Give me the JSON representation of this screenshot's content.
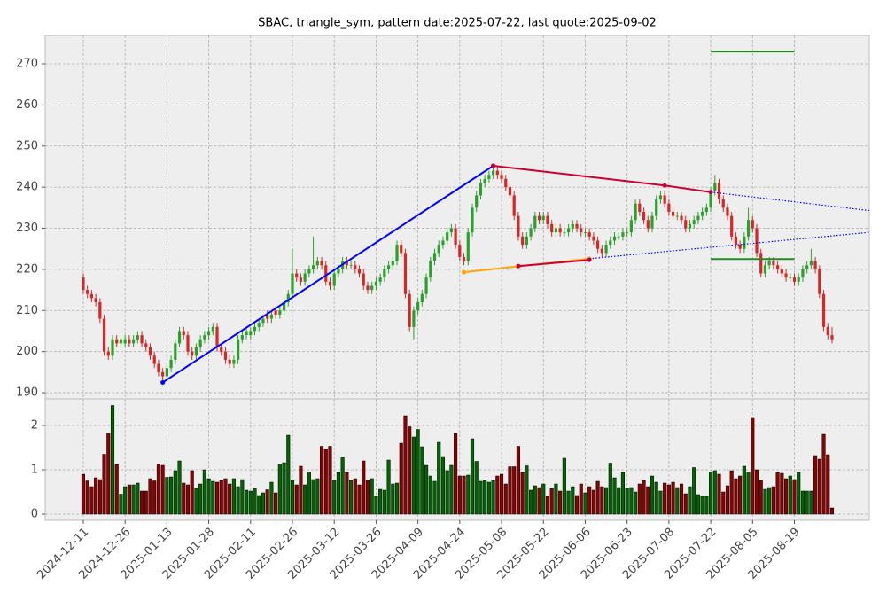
{
  "chart_data": [
    {
      "type": "candlestick",
      "title": "SBAC, triangle_sym, pattern date:2025-07-22, last quote:2025-09-02",
      "categories": [
        "2024-12-11",
        null,
        null,
        null,
        null,
        null,
        null,
        null,
        null,
        null,
        "2024-12-26",
        null,
        null,
        null,
        null,
        null,
        null,
        null,
        null,
        null,
        "2025-01-13",
        null,
        null,
        null,
        null,
        null,
        null,
        null,
        null,
        null,
        "2025-01-28",
        null,
        null,
        null,
        null,
        null,
        null,
        null,
        null,
        null,
        "2025-02-11",
        null,
        null,
        null,
        null,
        null,
        null,
        null,
        null,
        null,
        "2025-02-26",
        null,
        null,
        null,
        null,
        null,
        null,
        null,
        null,
        null,
        "2025-03-12",
        null,
        null,
        null,
        null,
        null,
        null,
        null,
        null,
        null,
        "2025-03-26",
        null,
        null,
        null,
        null,
        null,
        null,
        null,
        null,
        null,
        "2025-04-09",
        null,
        null,
        null,
        null,
        null,
        null,
        null,
        null,
        null,
        "2025-04-24",
        null,
        null,
        null,
        null,
        null,
        null,
        null,
        null,
        null,
        "2025-05-08",
        null,
        null,
        null,
        null,
        null,
        null,
        null,
        null,
        null,
        "2025-05-22",
        null,
        null,
        null,
        null,
        null,
        null,
        null,
        null,
        null,
        "2025-06-06",
        null,
        null,
        null,
        null,
        null,
        null,
        null,
        null,
        null,
        "2025-06-23",
        null,
        null,
        null,
        null,
        null,
        null,
        null,
        null,
        null,
        "2025-07-08",
        null,
        null,
        null,
        null,
        null,
        null,
        null,
        null,
        null,
        "2025-07-22",
        null,
        null,
        null,
        null,
        null,
        null,
        null,
        null,
        null,
        "2025-08-05",
        null,
        null,
        null,
        null,
        null,
        null,
        null,
        null,
        null,
        "2025-08-19",
        null,
        null,
        null,
        null,
        null,
        null,
        null,
        null,
        null
      ],
      "open": [
        218,
        215,
        214,
        213,
        212,
        208,
        200,
        199,
        203,
        202,
        202,
        203,
        202,
        203,
        204,
        202,
        201,
        199,
        197,
        195,
        194,
        196,
        198,
        202,
        205,
        204,
        200,
        199,
        201,
        203,
        204,
        205,
        206,
        201,
        200,
        198,
        197,
        198,
        203,
        204,
        204,
        205,
        206,
        207,
        209,
        208,
        210,
        209,
        210,
        212,
        214,
        219,
        218,
        217,
        219,
        220,
        221,
        222,
        221,
        217,
        216,
        219,
        220,
        222,
        221,
        221,
        220,
        219,
        216,
        215,
        216,
        217,
        218,
        220,
        221,
        222,
        226,
        224,
        214,
        206,
        210,
        212,
        214,
        218,
        222,
        224,
        226,
        227,
        229,
        230,
        226,
        223,
        222,
        229,
        235,
        238,
        241,
        242,
        243,
        244,
        243,
        242,
        240,
        238,
        233,
        228,
        226,
        228,
        230,
        233,
        232,
        233,
        231,
        229,
        230,
        229,
        229,
        230,
        231,
        230,
        229,
        229,
        228,
        227,
        225,
        224,
        226,
        227,
        228,
        228,
        229,
        229,
        232,
        236,
        234,
        232,
        230,
        233,
        237,
        238,
        236,
        234,
        233,
        233,
        232,
        230,
        231,
        232,
        233,
        234,
        235,
        239,
        241,
        237,
        235,
        233,
        228,
        226,
        225,
        228,
        232,
        230,
        224,
        219,
        221,
        222,
        221,
        220,
        219,
        218,
        218,
        217,
        218,
        220,
        221,
        222,
        220,
        214,
        206,
        204
      ],
      "high": [
        219,
        216,
        215,
        214,
        213,
        209,
        201,
        204,
        204,
        204,
        204,
        204,
        204,
        205,
        205,
        203,
        202,
        200,
        198,
        196,
        197,
        199,
        203,
        206,
        206,
        205,
        201,
        202,
        204,
        205,
        206,
        207,
        207,
        202,
        201,
        199,
        199,
        204,
        205,
        206,
        206,
        207,
        208,
        209,
        210,
        210,
        211,
        211,
        213,
        215,
        225,
        220,
        219,
        220,
        221,
        228,
        223,
        223,
        222,
        218,
        220,
        221,
        223,
        223,
        222,
        222,
        221,
        220,
        217,
        217,
        218,
        219,
        221,
        222,
        223,
        227,
        227,
        225,
        215,
        211,
        213,
        215,
        219,
        223,
        225,
        227,
        228,
        230,
        231,
        231,
        227,
        224,
        230,
        236,
        239,
        242,
        243,
        244,
        245,
        245,
        244,
        243,
        241,
        239,
        234,
        229,
        229,
        231,
        234,
        234,
        234,
        234,
        232,
        231,
        231,
        230,
        231,
        232,
        232,
        231,
        230,
        230,
        229,
        228,
        226,
        227,
        228,
        229,
        229,
        230,
        230,
        233,
        237,
        237,
        235,
        233,
        234,
        238,
        239,
        239,
        237,
        235,
        234,
        234,
        233,
        232,
        233,
        234,
        235,
        236,
        240,
        243,
        242,
        238,
        236,
        234,
        229,
        227,
        229,
        235,
        233,
        231,
        225,
        222,
        223,
        223,
        222,
        221,
        220,
        219,
        219,
        219,
        221,
        222,
        225,
        223,
        221,
        215,
        207,
        206
      ],
      "low": [
        214,
        213,
        212,
        211,
        207,
        199,
        198,
        198,
        201,
        201,
        201,
        201,
        201,
        202,
        201,
        200,
        198,
        196,
        194,
        193,
        193,
        195,
        197,
        201,
        203,
        199,
        198,
        198,
        200,
        202,
        203,
        204,
        200,
        199,
        197,
        196,
        196,
        197,
        202,
        203,
        203,
        204,
        205,
        206,
        207,
        207,
        208,
        208,
        209,
        211,
        213,
        217,
        216,
        216,
        218,
        219,
        220,
        220,
        216,
        215,
        215,
        218,
        219,
        220,
        220,
        219,
        218,
        215,
        214,
        214,
        215,
        216,
        217,
        219,
        220,
        221,
        223,
        213,
        205,
        203,
        209,
        211,
        213,
        217,
        221,
        223,
        225,
        226,
        228,
        225,
        222,
        221,
        221,
        228,
        234,
        237,
        240,
        241,
        242,
        242,
        241,
        239,
        237,
        232,
        227,
        225,
        225,
        227,
        229,
        231,
        231,
        230,
        228,
        228,
        228,
        228,
        228,
        229,
        229,
        228,
        228,
        227,
        226,
        224,
        223,
        223,
        225,
        226,
        227,
        227,
        228,
        228,
        231,
        233,
        231,
        229,
        229,
        232,
        236,
        235,
        233,
        232,
        232,
        231,
        229,
        229,
        230,
        231,
        232,
        233,
        234,
        238,
        236,
        234,
        232,
        227,
        225,
        224,
        224,
        227,
        229,
        223,
        218,
        218,
        220,
        220,
        219,
        218,
        217,
        217,
        216,
        216,
        217,
        219,
        220,
        219,
        213,
        205,
        203,
        202
      ],
      "close": [
        215,
        214,
        213,
        212,
        208,
        200,
        199,
        203,
        202,
        203,
        203,
        202,
        203,
        204,
        202,
        201,
        199,
        197,
        195,
        194,
        196,
        198,
        202,
        205,
        204,
        200,
        199,
        201,
        203,
        204,
        205,
        206,
        201,
        200,
        198,
        197,
        198,
        203,
        204,
        205,
        205,
        206,
        207,
        208,
        208,
        209,
        209,
        210,
        212,
        214,
        219,
        218,
        217,
        219,
        220,
        221,
        222,
        221,
        217,
        216,
        219,
        220,
        222,
        221,
        221,
        220,
        219,
        216,
        215,
        216,
        217,
        218,
        220,
        221,
        222,
        226,
        224,
        214,
        206,
        210,
        212,
        214,
        218,
        222,
        224,
        226,
        227,
        229,
        230,
        226,
        223,
        222,
        229,
        235,
        238,
        241,
        242,
        243,
        244,
        243,
        242,
        240,
        238,
        233,
        228,
        226,
        228,
        230,
        233,
        232,
        233,
        231,
        229,
        230,
        229,
        229,
        230,
        231,
        230,
        229,
        229,
        228,
        227,
        225,
        224,
        226,
        227,
        228,
        228,
        229,
        229,
        232,
        236,
        234,
        232,
        230,
        233,
        237,
        238,
        236,
        234,
        233,
        233,
        232,
        230,
        231,
        232,
        233,
        234,
        235,
        239,
        241,
        237,
        235,
        233,
        228,
        226,
        225,
        228,
        232,
        230,
        224,
        219,
        221,
        222,
        221,
        220,
        219,
        218,
        218,
        217,
        218,
        220,
        221,
        222,
        220,
        214,
        206,
        204,
        203
      ],
      "up_color": "#2ca02c",
      "down_color": "#d62728",
      "xlim": [
        -9.1,
        187.9
      ],
      "ylim": [
        188.5,
        276.9
      ],
      "yticks": [
        190,
        200,
        210,
        220,
        230,
        240,
        250,
        260,
        270
      ],
      "grid": true,
      "lines": [
        {
          "color": "#0000ff",
          "style": "solid",
          "markers": true,
          "x": [
            19,
            98
          ],
          "y": [
            192.5,
            245.2
          ]
        },
        {
          "color": "#cc0033",
          "style": "solid",
          "markers": true,
          "x": [
            98,
            139,
            150
          ],
          "y": [
            245.2,
            240.4,
            238.8
          ]
        },
        {
          "color": "#ffa500",
          "style": "solid",
          "markers": true,
          "x": [
            91,
            121
          ],
          "y": [
            219.3,
            222.6
          ]
        },
        {
          "color": "#cc0033",
          "style": "solid",
          "markers": true,
          "x": [
            104,
            121
          ],
          "y": [
            220.8,
            222.3
          ]
        },
        {
          "color": "#0000ff",
          "style": "dotted",
          "markers": false,
          "x": [
            150,
            187.9
          ],
          "y": [
            238.8,
            234.3
          ]
        },
        {
          "color": "#0000ff",
          "style": "dotted",
          "markers": false,
          "x": [
            121,
            187.9
          ],
          "y": [
            222.6,
            229.0
          ]
        },
        {
          "color": "#228b22",
          "style": "solid",
          "markers": false,
          "x": [
            150,
            170
          ],
          "y": [
            273,
            273
          ]
        },
        {
          "color": "#228b22",
          "style": "solid",
          "markers": false,
          "x": [
            150,
            170
          ],
          "y": [
            222.5,
            222.5
          ]
        }
      ]
    },
    {
      "type": "bar",
      "values": [
        0.9,
        0.75,
        0.62,
        0.82,
        0.78,
        1.35,
        1.83,
        2.45,
        1.12,
        0.45,
        0.62,
        0.66,
        0.66,
        0.7,
        0.52,
        0.52,
        0.8,
        0.75,
        1.13,
        1.1,
        0.83,
        0.84,
        0.98,
        1.2,
        0.7,
        0.66,
        0.98,
        0.58,
        0.68,
        1.0,
        0.8,
        0.74,
        0.72,
        0.76,
        0.8,
        0.68,
        0.8,
        0.62,
        0.78,
        0.54,
        0.52,
        0.58,
        0.42,
        0.48,
        0.55,
        0.72,
        0.48,
        1.13,
        1.16,
        1.78,
        0.76,
        0.66,
        1.08,
        0.66,
        0.95,
        0.78,
        0.8,
        1.53,
        1.46,
        1.53,
        0.76,
        0.94,
        1.29,
        0.94,
        0.76,
        0.8,
        0.66,
        1.2,
        0.76,
        0.8,
        0.4,
        0.56,
        0.54,
        1.22,
        0.68,
        0.7,
        1.6,
        2.22,
        1.97,
        1.74,
        1.91,
        1.52,
        1.1,
        0.86,
        0.74,
        1.62,
        1.3,
        0.98,
        1.1,
        1.82,
        0.86,
        0.86,
        0.88,
        1.7,
        1.19,
        0.74,
        0.76,
        0.72,
        0.76,
        0.86,
        0.9,
        0.68,
        1.07,
        1.07,
        1.53,
        0.94,
        1.09,
        0.54,
        0.64,
        0.6,
        0.68,
        0.4,
        0.58,
        0.68,
        0.52,
        1.26,
        0.52,
        0.62,
        0.42,
        0.68,
        0.48,
        0.62,
        0.54,
        0.74,
        0.62,
        0.6,
        1.15,
        0.82,
        0.6,
        0.94,
        0.58,
        0.6,
        0.5,
        0.68,
        0.76,
        0.62,
        0.86,
        0.72,
        0.52,
        0.7,
        0.66,
        0.72,
        0.6,
        0.68,
        0.46,
        0.62,
        1.05,
        0.44,
        0.4,
        0.4,
        0.95,
        0.98,
        0.9,
        0.5,
        0.64,
        0.98,
        0.8,
        0.86,
        1.08,
        0.95,
        2.18,
        1.0,
        0.76,
        0.56,
        0.6,
        0.62,
        0.94,
        0.92,
        0.8,
        0.86,
        0.78,
        0.94,
        0.52,
        0.52,
        0.52,
        1.32,
        1.24,
        1.8,
        1.34,
        0.14
      ],
      "up_color": "#006400",
      "down_color": "#8b0000",
      "ylim": [
        -0.14,
        2.6
      ],
      "yticks": [
        0,
        1,
        2
      ],
      "grid": true
    }
  ]
}
